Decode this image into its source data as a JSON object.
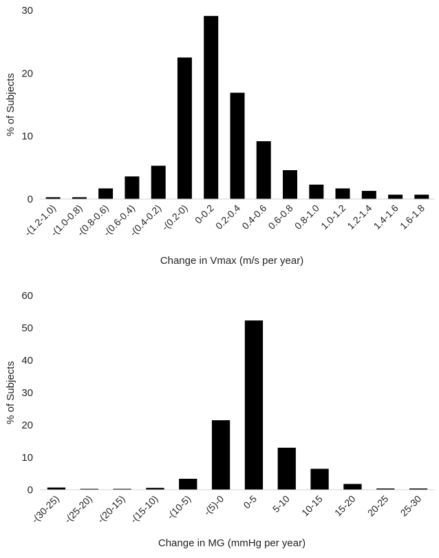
{
  "chart_data": [
    {
      "type": "bar",
      "xlabel": "Change in Vmax (m/s per year)",
      "ylabel": "% of Subjects",
      "ylim": [
        0,
        30
      ],
      "yticks": [
        0,
        10,
        20,
        30
      ],
      "categories": [
        "-(1.2-1.0)",
        "-(1.0-0.8)",
        "-(0.8-0.6)",
        "-(0.6-0.4)",
        "-(0.4-0.2)",
        "-(0.2-0)",
        "0-0.2",
        "0.2-0.4",
        "0.4-0.6",
        "0.6-0.8",
        "0.8-1.0",
        "1.0-1.2",
        "1.2-1.4",
        "1.4-1.6",
        "1.6-1.8"
      ],
      "values": [
        0.3,
        0.3,
        1.7,
        3.6,
        5.3,
        22.5,
        29.1,
        16.9,
        9.2,
        4.6,
        2.3,
        1.7,
        1.3,
        0.7,
        0.7
      ],
      "bar_color": "#000000"
    },
    {
      "type": "bar",
      "xlabel": "Change in MG (mmHg per year)",
      "ylabel": "% of Subjects",
      "ylim": [
        0,
        60
      ],
      "yticks": [
        0,
        10,
        20,
        30,
        40,
        50,
        60
      ],
      "categories": [
        "-(30-25)",
        "-(25-20)",
        "-(20-15)",
        "-(15-10)",
        "-(10-5)",
        "-(5)-0",
        "0-5",
        "5-10",
        "10-15",
        "15-20",
        "20-25",
        "25-30"
      ],
      "values": [
        0.7,
        0.3,
        0.3,
        0.6,
        3.4,
        21.5,
        52.3,
        13.0,
        6.5,
        1.8,
        0.4,
        0.4
      ],
      "bar_color": "#000000"
    }
  ]
}
